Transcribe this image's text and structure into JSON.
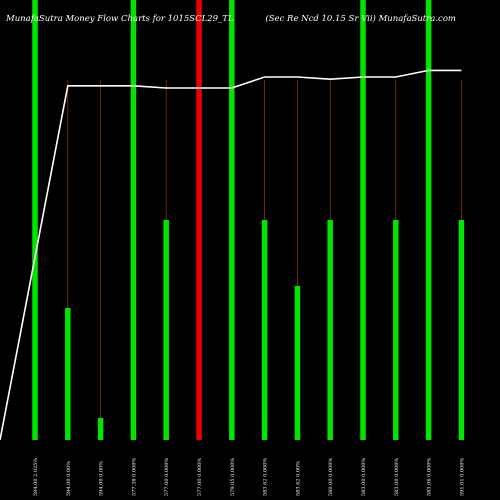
{
  "chart_data": {
    "type": "bar",
    "title": "MunafaSutra  Money Flow  Charts for 1015SCL29_TL",
    "subtitle": "(Sec Re   Ncd 10.15   Sr Vii) MunafaSutra.com",
    "categories": [
      "594.00 2.025%",
      "594.00 0.00%",
      "594.00 0.00%",
      "577.38 0.000%",
      "577.00 0.000%",
      "577.00 0.000%",
      "579.05 0.000%",
      "583.62 0.000%",
      "583.62 0.00%",
      "580.00 0.000%",
      "583.00 0.000%",
      "583.00 0.000%",
      "583.06 0.000%",
      "591.01 0.000%"
    ],
    "series": [
      {
        "values": [
          100,
          0,
          0,
          100,
          0,
          100,
          100,
          0,
          0,
          0,
          100,
          0,
          100,
          0
        ],
        "colors": [
          "green",
          "none",
          "none",
          "green",
          "none",
          "red",
          "green",
          "none",
          "none",
          "none",
          "green",
          "none",
          "green",
          "none"
        ]
      },
      {
        "values": [
          0,
          30,
          5,
          0,
          50,
          0,
          0,
          50,
          35,
          50,
          0,
          50,
          0,
          50
        ],
        "colors": [
          "none",
          "green",
          "green",
          "none",
          "green",
          "none",
          "none",
          "green",
          "green",
          "green",
          "none",
          "green",
          "none",
          "green"
        ]
      }
    ],
    "line": [
      0,
      80.5,
      80.5,
      80.5,
      80.0,
      80.0,
      80.0,
      82.5,
      82.5,
      82.0,
      82.5,
      82.5,
      84.0,
      84.0
    ],
    "ylim": [
      0,
      100
    ],
    "colors": {
      "green": "#00e600",
      "red": "#ee0000",
      "line": "#ffffff",
      "wick": "#7a3b00",
      "background": "#000000"
    }
  }
}
